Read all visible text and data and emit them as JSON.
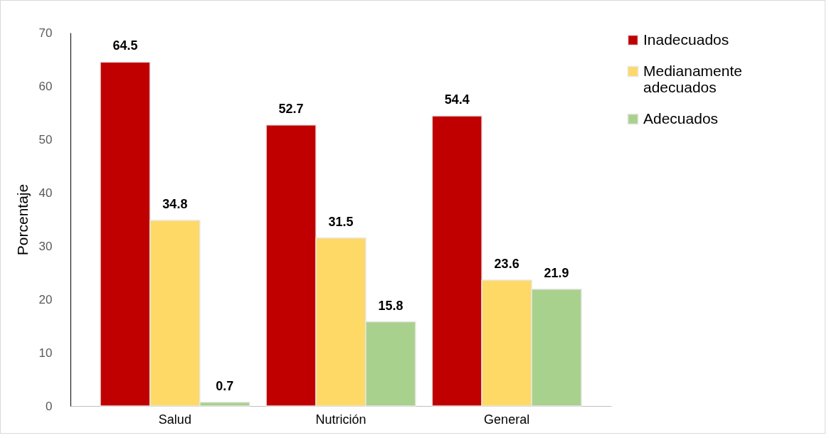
{
  "chart_data": {
    "type": "bar",
    "ylabel": "Porcentaje",
    "categories": [
      "Salud",
      "Nutrición",
      "General"
    ],
    "series": [
      {
        "name": "Inadecuados",
        "color": "#c00000",
        "values": [
          64.5,
          52.7,
          54.4
        ]
      },
      {
        "name": "Medianamente adecuados",
        "color": "#ffd966",
        "values": [
          34.8,
          31.5,
          23.6
        ]
      },
      {
        "name": "Adecuados",
        "color": "#a9d18e",
        "values": [
          0.7,
          15.8,
          21.9
        ]
      }
    ],
    "ylim": [
      0,
      70
    ],
    "yticks": [
      0,
      10,
      20,
      30,
      40,
      50,
      60,
      70
    ],
    "grid": false,
    "legend": "right",
    "data_labels": true
  }
}
